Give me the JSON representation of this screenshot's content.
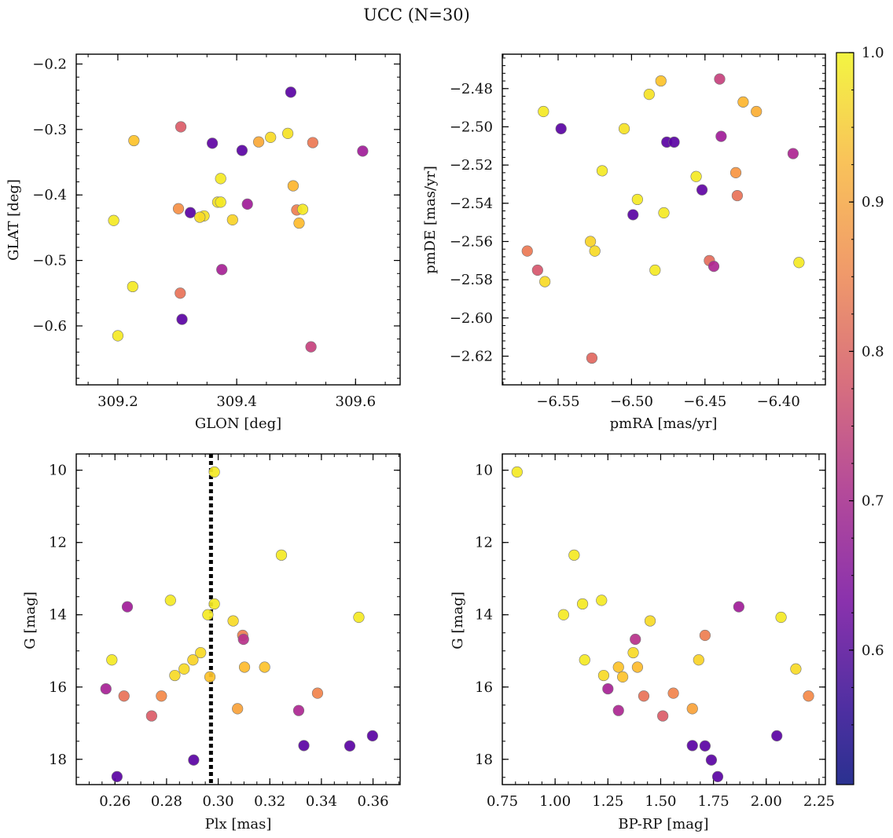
{
  "figure": {
    "title": "UCC (N=30)"
  },
  "colorbar": {
    "colormap": "plasma",
    "range": [
      0.51,
      1.0
    ],
    "ticks": [
      0.6,
      0.7,
      0.8,
      0.9,
      1.0
    ],
    "tick_labels": [
      "0.6",
      "0.7",
      "0.8",
      "0.9",
      "1.0"
    ]
  },
  "chart_data": [
    {
      "id": "glon_glat",
      "type": "scatter",
      "xlabel": "GLON [deg]",
      "ylabel": "GLAT [deg]",
      "xlim": [
        309.13,
        309.675
      ],
      "ylim": [
        -0.69,
        -0.185
      ],
      "y_inverted": false,
      "xticks": [
        309.2,
        309.4,
        309.6
      ],
      "xtick_labels": [
        "309.2",
        "309.4",
        "309.6"
      ],
      "yticks": [
        -0.2,
        -0.3,
        -0.4,
        -0.5,
        -0.6
      ],
      "ytick_labels": [
        "−0.2",
        "−0.3",
        "−0.4",
        "−0.5",
        "−0.6"
      ],
      "points": [
        {
          "x": 309.491,
          "y": -0.243,
          "c": 0.53
        },
        {
          "x": 309.227,
          "y": -0.317,
          "c": 0.93
        },
        {
          "x": 309.306,
          "y": -0.296,
          "c": 0.76
        },
        {
          "x": 309.359,
          "y": -0.321,
          "c": 0.54
        },
        {
          "x": 309.409,
          "y": -0.332,
          "c": 0.53
        },
        {
          "x": 309.437,
          "y": -0.319,
          "c": 0.89
        },
        {
          "x": 309.457,
          "y": -0.312,
          "c": 0.96
        },
        {
          "x": 309.486,
          "y": -0.306,
          "c": 0.97
        },
        {
          "x": 309.528,
          "y": -0.32,
          "c": 0.81
        },
        {
          "x": 309.612,
          "y": -0.333,
          "c": 0.64
        },
        {
          "x": 309.373,
          "y": -0.375,
          "c": 0.98
        },
        {
          "x": 309.495,
          "y": -0.386,
          "c": 0.91
        },
        {
          "x": 309.368,
          "y": -0.411,
          "c": 0.97
        },
        {
          "x": 309.373,
          "y": -0.411,
          "c": 0.98
        },
        {
          "x": 309.418,
          "y": -0.414,
          "c": 0.64
        },
        {
          "x": 309.302,
          "y": -0.421,
          "c": 0.85
        },
        {
          "x": 309.322,
          "y": -0.427,
          "c": 0.53
        },
        {
          "x": 309.345,
          "y": -0.432,
          "c": 0.97
        },
        {
          "x": 309.338,
          "y": -0.434,
          "c": 0.96
        },
        {
          "x": 309.393,
          "y": -0.438,
          "c": 0.95
        },
        {
          "x": 309.193,
          "y": -0.439,
          "c": 0.98
        },
        {
          "x": 309.501,
          "y": -0.423,
          "c": 0.82
        },
        {
          "x": 309.511,
          "y": -0.422,
          "c": 0.98
        },
        {
          "x": 309.505,
          "y": -0.443,
          "c": 0.92
        },
        {
          "x": 309.375,
          "y": -0.514,
          "c": 0.65
        },
        {
          "x": 309.225,
          "y": -0.54,
          "c": 0.98
        },
        {
          "x": 309.305,
          "y": -0.55,
          "c": 0.8
        },
        {
          "x": 309.308,
          "y": -0.59,
          "c": 0.53
        },
        {
          "x": 309.2,
          "y": -0.615,
          "c": 0.98
        },
        {
          "x": 309.525,
          "y": -0.632,
          "c": 0.71
        }
      ]
    },
    {
      "id": "pmra_pmde",
      "type": "scatter",
      "xlabel": "pmRA [mas/yr]",
      "ylabel": "pmDE [mas/yr]",
      "xlim": [
        -6.588,
        -6.368
      ],
      "ylim": [
        -2.635,
        -2.462
      ],
      "y_inverted": false,
      "xticks": [
        -6.55,
        -6.5,
        -6.45,
        -6.4
      ],
      "xtick_labels": [
        "−6.55",
        "−6.50",
        "−6.45",
        "−6.40"
      ],
      "yticks": [
        -2.48,
        -2.5,
        -2.52,
        -2.54,
        -2.56,
        -2.58,
        -2.6,
        -2.62
      ],
      "ytick_labels": [
        "−2.48",
        "−2.50",
        "−2.52",
        "−2.54",
        "−2.56",
        "−2.58",
        "−2.60",
        "−2.62"
      ],
      "points": [
        {
          "x": -6.44,
          "y": -2.475,
          "c": 0.71
        },
        {
          "x": -6.48,
          "y": -2.476,
          "c": 0.93
        },
        {
          "x": -6.488,
          "y": -2.483,
          "c": 0.97
        },
        {
          "x": -6.424,
          "y": -2.487,
          "c": 0.91
        },
        {
          "x": -6.415,
          "y": -2.492,
          "c": 0.9
        },
        {
          "x": -6.56,
          "y": -2.492,
          "c": 0.98
        },
        {
          "x": -6.548,
          "y": -2.501,
          "c": 0.53
        },
        {
          "x": -6.505,
          "y": -2.501,
          "c": 0.97
        },
        {
          "x": -6.476,
          "y": -2.508,
          "c": 0.53
        },
        {
          "x": -6.471,
          "y": -2.508,
          "c": 0.53
        },
        {
          "x": -6.439,
          "y": -2.505,
          "c": 0.64
        },
        {
          "x": -6.39,
          "y": -2.514,
          "c": 0.66
        },
        {
          "x": -6.52,
          "y": -2.523,
          "c": 0.98
        },
        {
          "x": -6.429,
          "y": -2.524,
          "c": 0.86
        },
        {
          "x": -6.456,
          "y": -2.526,
          "c": 0.98
        },
        {
          "x": -6.452,
          "y": -2.533,
          "c": 0.54
        },
        {
          "x": -6.428,
          "y": -2.536,
          "c": 0.8
        },
        {
          "x": -6.496,
          "y": -2.538,
          "c": 0.98
        },
        {
          "x": -6.478,
          "y": -2.545,
          "c": 0.98
        },
        {
          "x": -6.499,
          "y": -2.546,
          "c": 0.53
        },
        {
          "x": -6.528,
          "y": -2.56,
          "c": 0.95
        },
        {
          "x": -6.571,
          "y": -2.565,
          "c": 0.81
        },
        {
          "x": -6.525,
          "y": -2.565,
          "c": 0.96
        },
        {
          "x": -6.447,
          "y": -2.57,
          "c": 0.79
        },
        {
          "x": -6.444,
          "y": -2.573,
          "c": 0.66
        },
        {
          "x": -6.386,
          "y": -2.571,
          "c": 0.98
        },
        {
          "x": -6.564,
          "y": -2.575,
          "c": 0.75
        },
        {
          "x": -6.484,
          "y": -2.575,
          "c": 0.98
        },
        {
          "x": -6.559,
          "y": -2.581,
          "c": 0.96
        },
        {
          "x": -6.527,
          "y": -2.621,
          "c": 0.78
        }
      ]
    },
    {
      "id": "plx_g",
      "type": "scatter",
      "xlabel": "Plx [mas]",
      "ylabel": "G [mag]",
      "xlim": [
        0.245,
        0.3705
      ],
      "ylim": [
        9.55,
        18.7
      ],
      "y_inverted": true,
      "xticks": [
        0.26,
        0.28,
        0.3,
        0.32,
        0.34,
        0.36
      ],
      "xtick_labels": [
        "0.26",
        "0.28",
        "0.30",
        "0.32",
        "0.34",
        "0.36"
      ],
      "yticks": [
        10,
        12,
        14,
        16,
        18
      ],
      "ytick_labels": [
        "10",
        "12",
        "14",
        "16",
        "18"
      ],
      "vline": {
        "x": 0.2972,
        "style": "dotted",
        "color": "#000000"
      },
      "points": [
        {
          "x": 0.2985,
          "y": 10.05,
          "c": 0.98
        },
        {
          "x": 0.3245,
          "y": 12.35,
          "c": 0.98
        },
        {
          "x": 0.2815,
          "y": 13.6,
          "c": 0.98
        },
        {
          "x": 0.2985,
          "y": 13.7,
          "c": 0.98
        },
        {
          "x": 0.2648,
          "y": 13.78,
          "c": 0.64
        },
        {
          "x": 0.296,
          "y": 14.0,
          "c": 0.98
        },
        {
          "x": 0.3545,
          "y": 14.07,
          "c": 0.98
        },
        {
          "x": 0.3058,
          "y": 14.17,
          "c": 0.96
        },
        {
          "x": 0.3095,
          "y": 14.57,
          "c": 0.82
        },
        {
          "x": 0.3098,
          "y": 14.68,
          "c": 0.68
        },
        {
          "x": 0.2932,
          "y": 15.05,
          "c": 0.96
        },
        {
          "x": 0.2588,
          "y": 15.25,
          "c": 0.98
        },
        {
          "x": 0.2902,
          "y": 15.25,
          "c": 0.95
        },
        {
          "x": 0.3102,
          "y": 15.45,
          "c": 0.92
        },
        {
          "x": 0.318,
          "y": 15.45,
          "c": 0.93
        },
        {
          "x": 0.2868,
          "y": 15.5,
          "c": 0.96
        },
        {
          "x": 0.2832,
          "y": 15.68,
          "c": 0.96
        },
        {
          "x": 0.2968,
          "y": 15.72,
          "c": 0.93
        },
        {
          "x": 0.2565,
          "y": 16.05,
          "c": 0.65
        },
        {
          "x": 0.3385,
          "y": 16.17,
          "c": 0.83
        },
        {
          "x": 0.2635,
          "y": 16.25,
          "c": 0.8
        },
        {
          "x": 0.278,
          "y": 16.25,
          "c": 0.84
        },
        {
          "x": 0.3075,
          "y": 16.6,
          "c": 0.88
        },
        {
          "x": 0.3312,
          "y": 16.65,
          "c": 0.66
        },
        {
          "x": 0.2742,
          "y": 16.8,
          "c": 0.76
        },
        {
          "x": 0.3598,
          "y": 17.35,
          "c": 0.53
        },
        {
          "x": 0.3332,
          "y": 17.62,
          "c": 0.53
        },
        {
          "x": 0.351,
          "y": 17.63,
          "c": 0.53
        },
        {
          "x": 0.2905,
          "y": 18.02,
          "c": 0.53
        },
        {
          "x": 0.2608,
          "y": 18.48,
          "c": 0.53
        }
      ]
    },
    {
      "id": "bprp_g",
      "type": "scatter",
      "xlabel": "BP-RP [mag]",
      "ylabel": "G [mag]",
      "xlim": [
        0.75,
        2.28
      ],
      "ylim": [
        9.55,
        18.7
      ],
      "y_inverted": true,
      "xticks": [
        0.75,
        1.0,
        1.25,
        1.5,
        1.75,
        2.0,
        2.25
      ],
      "xtick_labels": [
        "0.75",
        "1.00",
        "1.25",
        "1.50",
        "1.75",
        "2.00",
        "2.25"
      ],
      "yticks": [
        10,
        12,
        14,
        16,
        18
      ],
      "ytick_labels": [
        "10",
        "12",
        "14",
        "16",
        "18"
      ],
      "points": [
        {
          "x": 0.82,
          "y": 10.05,
          "c": 0.98
        },
        {
          "x": 1.09,
          "y": 12.35,
          "c": 0.98
        },
        {
          "x": 1.22,
          "y": 13.6,
          "c": 0.98
        },
        {
          "x": 1.13,
          "y": 13.7,
          "c": 0.98
        },
        {
          "x": 1.87,
          "y": 13.78,
          "c": 0.64
        },
        {
          "x": 1.04,
          "y": 14.0,
          "c": 0.98
        },
        {
          "x": 2.07,
          "y": 14.07,
          "c": 0.98
        },
        {
          "x": 1.45,
          "y": 14.17,
          "c": 0.96
        },
        {
          "x": 1.71,
          "y": 14.57,
          "c": 0.82
        },
        {
          "x": 1.38,
          "y": 14.68,
          "c": 0.68
        },
        {
          "x": 1.37,
          "y": 15.05,
          "c": 0.96
        },
        {
          "x": 1.14,
          "y": 15.25,
          "c": 0.98
        },
        {
          "x": 1.68,
          "y": 15.25,
          "c": 0.95
        },
        {
          "x": 1.39,
          "y": 15.45,
          "c": 0.92
        },
        {
          "x": 1.3,
          "y": 15.45,
          "c": 0.93
        },
        {
          "x": 2.14,
          "y": 15.5,
          "c": 0.96
        },
        {
          "x": 1.23,
          "y": 15.68,
          "c": 0.96
        },
        {
          "x": 1.32,
          "y": 15.72,
          "c": 0.93
        },
        {
          "x": 1.25,
          "y": 16.05,
          "c": 0.65
        },
        {
          "x": 1.56,
          "y": 16.17,
          "c": 0.83
        },
        {
          "x": 1.42,
          "y": 16.25,
          "c": 0.8
        },
        {
          "x": 2.2,
          "y": 16.25,
          "c": 0.84
        },
        {
          "x": 1.65,
          "y": 16.6,
          "c": 0.88
        },
        {
          "x": 1.3,
          "y": 16.65,
          "c": 0.66
        },
        {
          "x": 1.51,
          "y": 16.8,
          "c": 0.76
        },
        {
          "x": 2.05,
          "y": 17.35,
          "c": 0.53
        },
        {
          "x": 1.65,
          "y": 17.62,
          "c": 0.53
        },
        {
          "x": 1.71,
          "y": 17.63,
          "c": 0.53
        },
        {
          "x": 1.74,
          "y": 18.02,
          "c": 0.53
        },
        {
          "x": 1.77,
          "y": 18.48,
          "c": 0.53
        }
      ]
    }
  ]
}
